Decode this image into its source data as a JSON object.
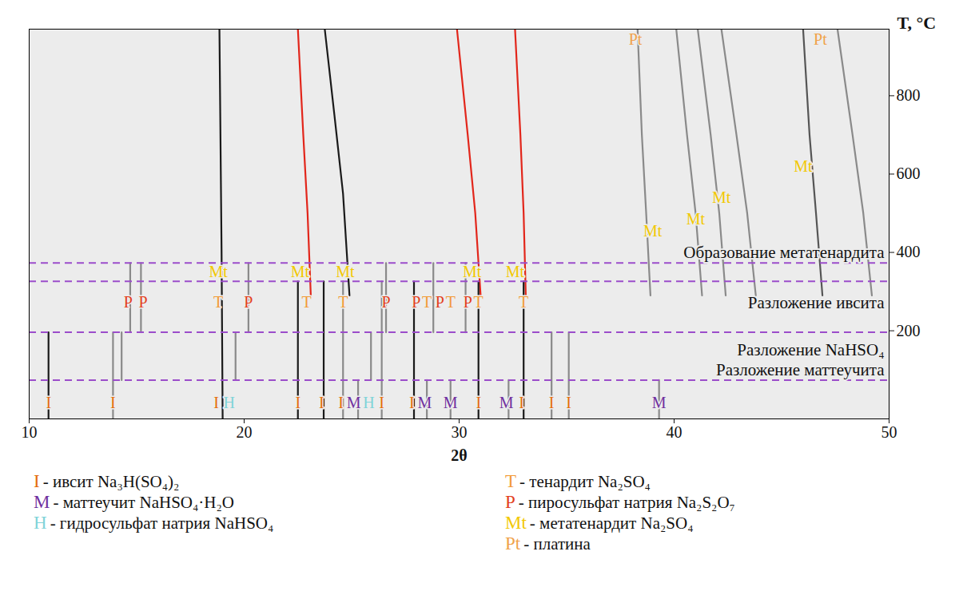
{
  "chart_data": {
    "type": "line",
    "x_label": "2θ",
    "y_label": "T, °C",
    "xlim": [
      10,
      50
    ],
    "xticks": [
      10,
      20,
      30,
      40,
      50
    ],
    "ylim": [
      -25,
      970
    ],
    "yticks": [
      200,
      400,
      600,
      800
    ],
    "grid": false,
    "legend": "bottom",
    "traces": [
      {
        "color": "#1a1a1a",
        "x": [
          19.0,
          18.95,
          18.85
        ],
        "y": [
          -25,
          400,
          970
        ]
      },
      {
        "color": "#e2261b",
        "x": [
          23.1,
          22.95,
          22.75,
          22.5
        ],
        "y": [
          290,
          500,
          700,
          970
        ]
      },
      {
        "color": "#1a1a1a",
        "x": [
          24.9,
          24.6,
          24.2,
          23.75
        ],
        "y": [
          290,
          550,
          750,
          970
        ]
      },
      {
        "color": "#e2261b",
        "x": [
          31.0,
          30.75,
          30.4,
          29.9
        ],
        "y": [
          290,
          500,
          700,
          970
        ]
      },
      {
        "color": "#e2261b",
        "x": [
          33.1,
          33.0,
          32.85,
          32.6
        ],
        "y": [
          290,
          500,
          700,
          970
        ]
      },
      {
        "color": "#8a8a8a",
        "x": [
          38.9,
          38.7,
          38.5,
          38.3
        ],
        "y": [
          290,
          500,
          700,
          970
        ]
      },
      {
        "color": "#8a8a8a",
        "x": [
          41.3,
          41.0,
          40.6,
          40.1
        ],
        "y": [
          290,
          500,
          700,
          970
        ]
      },
      {
        "color": "#8a8a8a",
        "x": [
          42.4,
          42.1,
          41.7,
          41.1
        ],
        "y": [
          290,
          500,
          700,
          970
        ]
      },
      {
        "color": "#8a8a8a",
        "x": [
          43.8,
          43.4,
          42.9,
          42.2
        ],
        "y": [
          290,
          500,
          700,
          970
        ]
      },
      {
        "color": "#555555",
        "x": [
          46.9,
          46.6,
          46.3,
          46.0
        ],
        "y": [
          290,
          500,
          700,
          970
        ]
      },
      {
        "color": "#8a8a8a",
        "x": [
          49.2,
          48.8,
          48.3,
          47.6
        ],
        "y": [
          290,
          500,
          700,
          970
        ]
      },
      {
        "color": "#1a1a1a",
        "x": [
          10.9,
          10.9
        ],
        "y": [
          -25,
          196
        ]
      },
      {
        "color": "#1a1a1a",
        "x": [
          22.5,
          22.5
        ],
        "y": [
          -25,
          326
        ]
      },
      {
        "color": "#1a1a1a",
        "x": [
          23.7,
          23.7
        ],
        "y": [
          -25,
          326
        ]
      },
      {
        "color": "#1a1a1a",
        "x": [
          27.9,
          27.9
        ],
        "y": [
          -25,
          326
        ]
      },
      {
        "color": "#1a1a1a",
        "x": [
          30.9,
          30.9
        ],
        "y": [
          -25,
          326
        ]
      },
      {
        "color": "#1a1a1a",
        "x": [
          33.0,
          33.0
        ],
        "y": [
          -25,
          326
        ]
      },
      {
        "color": "#8a8a8a",
        "x": [
          13.9,
          13.9
        ],
        "y": [
          -25,
          196
        ]
      },
      {
        "color": "#8a8a8a",
        "x": [
          24.6,
          24.6
        ],
        "y": [
          -25,
          326
        ]
      },
      {
        "color": "#8a8a8a",
        "x": [
          26.4,
          26.4
        ],
        "y": [
          -25,
          326
        ]
      },
      {
        "color": "#8a8a8a",
        "x": [
          34.3,
          34.3
        ],
        "y": [
          -25,
          196
        ]
      },
      {
        "color": "#8a8a8a",
        "x": [
          35.1,
          35.1
        ],
        "y": [
          -25,
          196
        ]
      },
      {
        "color": "#8a8a8a",
        "x": [
          14.3,
          14.3
        ],
        "y": [
          74,
          196
        ]
      },
      {
        "color": "#8a8a8a",
        "x": [
          19.6,
          19.6
        ],
        "y": [
          74,
          196
        ]
      },
      {
        "color": "#8a8a8a",
        "x": [
          25.9,
          25.9
        ],
        "y": [
          74,
          196
        ]
      },
      {
        "color": "#8a8a8a",
        "x": [
          25.3,
          25.3
        ],
        "y": [
          -25,
          74
        ]
      },
      {
        "color": "#8a8a8a",
        "x": [
          28.5,
          28.5
        ],
        "y": [
          -25,
          74
        ]
      },
      {
        "color": "#8a8a8a",
        "x": [
          29.6,
          29.6
        ],
        "y": [
          -25,
          74
        ]
      },
      {
        "color": "#8a8a8a",
        "x": [
          32.3,
          32.3
        ],
        "y": [
          -25,
          74
        ]
      },
      {
        "color": "#8a8a8a",
        "x": [
          39.3,
          39.3
        ],
        "y": [
          -25,
          74
        ]
      },
      {
        "color": "#8a8a8a",
        "x": [
          14.7,
          14.7
        ],
        "y": [
          196,
          373
        ]
      },
      {
        "color": "#8a8a8a",
        "x": [
          15.2,
          15.2
        ],
        "y": [
          196,
          373
        ]
      },
      {
        "color": "#8a8a8a",
        "x": [
          20.2,
          20.2
        ],
        "y": [
          196,
          373
        ]
      },
      {
        "color": "#8a8a8a",
        "x": [
          26.6,
          26.6
        ],
        "y": [
          196,
          373
        ]
      },
      {
        "color": "#8a8a8a",
        "x": [
          28.8,
          28.8
        ],
        "y": [
          196,
          373
        ]
      },
      {
        "color": "#8a8a8a",
        "x": [
          30.3,
          30.3
        ],
        "y": [
          196,
          373
        ]
      }
    ],
    "transitions": [
      373,
      326,
      196,
      74
    ],
    "annotations": [
      {
        "text": "Образование метатенардита",
        "y": 400
      },
      {
        "text": "Разложение ивсита",
        "y": 272
      },
      {
        "text": "Разложение NaHSO₄",
        "y": 150
      },
      {
        "text": "Разложение маттеучита",
        "y": 100
      }
    ],
    "labels": [
      {
        "text": "I",
        "x": 10.9,
        "y": 15
      },
      {
        "text": "I",
        "x": 13.9,
        "y": 15
      },
      {
        "text": "I",
        "x": 18.7,
        "y": 15
      },
      {
        "text": "H",
        "x": 19.3,
        "y": 15
      },
      {
        "text": "I",
        "x": 22.5,
        "y": 15
      },
      {
        "text": "I",
        "x": 23.6,
        "y": 15
      },
      {
        "text": "I",
        "x": 24.5,
        "y": 15
      },
      {
        "text": "M",
        "x": 25.1,
        "y": 15
      },
      {
        "text": "H",
        "x": 25.8,
        "y": 15
      },
      {
        "text": "I",
        "x": 26.4,
        "y": 15
      },
      {
        "text": "I",
        "x": 27.8,
        "y": 15
      },
      {
        "text": "M",
        "x": 28.4,
        "y": 15
      },
      {
        "text": "M",
        "x": 29.6,
        "y": 15
      },
      {
        "text": "I",
        "x": 30.9,
        "y": 15
      },
      {
        "text": "M",
        "x": 32.2,
        "y": 15
      },
      {
        "text": "I",
        "x": 32.9,
        "y": 15
      },
      {
        "text": "I",
        "x": 34.3,
        "y": 15
      },
      {
        "text": "I",
        "x": 35.1,
        "y": 15
      },
      {
        "text": "M",
        "x": 39.3,
        "y": 15
      },
      {
        "text": "P",
        "x": 14.6,
        "y": 272
      },
      {
        "text": "P",
        "x": 15.3,
        "y": 272
      },
      {
        "text": "T",
        "x": 18.8,
        "y": 272
      },
      {
        "text": "P",
        "x": 20.2,
        "y": 272
      },
      {
        "text": "T",
        "x": 22.9,
        "y": 272
      },
      {
        "text": "T",
        "x": 24.6,
        "y": 272
      },
      {
        "text": "P",
        "x": 26.6,
        "y": 272
      },
      {
        "text": "P",
        "x": 28.0,
        "y": 272
      },
      {
        "text": "T",
        "x": 28.5,
        "y": 272
      },
      {
        "text": "P",
        "x": 29.1,
        "y": 272
      },
      {
        "text": "T",
        "x": 29.6,
        "y": 272
      },
      {
        "text": "P",
        "x": 30.4,
        "y": 272
      },
      {
        "text": "T",
        "x": 30.9,
        "y": 272
      },
      {
        "text": "T",
        "x": 33.0,
        "y": 272
      },
      {
        "text": "Mt",
        "x": 18.8,
        "y": 350
      },
      {
        "text": "Mt",
        "x": 22.6,
        "y": 350
      },
      {
        "text": "Mt",
        "x": 24.7,
        "y": 350
      },
      {
        "text": "Mt",
        "x": 30.6,
        "y": 350
      },
      {
        "text": "Mt",
        "x": 32.6,
        "y": 350
      },
      {
        "text": "Mt",
        "x": 39.0,
        "y": 454
      },
      {
        "text": "Mt",
        "x": 41.0,
        "y": 485
      },
      {
        "text": "Mt",
        "x": 42.2,
        "y": 540
      },
      {
        "text": "Mt",
        "x": 46.0,
        "y": 620
      },
      {
        "text": "Pt",
        "x": 38.2,
        "y": 944
      },
      {
        "text": "Pt",
        "x": 46.8,
        "y": 944
      }
    ],
    "legend_columns": [
      [
        {
          "code": "I",
          "text": "- ивсит Na₃H(SO₄)₂",
          "color": "#e46c0a"
        },
        {
          "code": "M",
          "text": "- маттеучит NaHSO₄·H₂O",
          "color": "#7030a0"
        },
        {
          "code": "H",
          "text": "- гидросульфат натрия NaHSO₄",
          "color": "#7fd3d8"
        }
      ],
      [
        {
          "code": "T",
          "text": "- тенардит Na₂SO₄",
          "color": "#f29b38"
        },
        {
          "code": "P",
          "text": "- пиросульфат натрия Na₂S₂O₇",
          "color": "#e3401c"
        },
        {
          "code": "Mt",
          "text": "- метатенардит Na₂SO₄",
          "color": "#f2c800"
        },
        {
          "code": "Pt",
          "text": "- платина",
          "color": "#f0a24a"
        }
      ]
    ]
  }
}
